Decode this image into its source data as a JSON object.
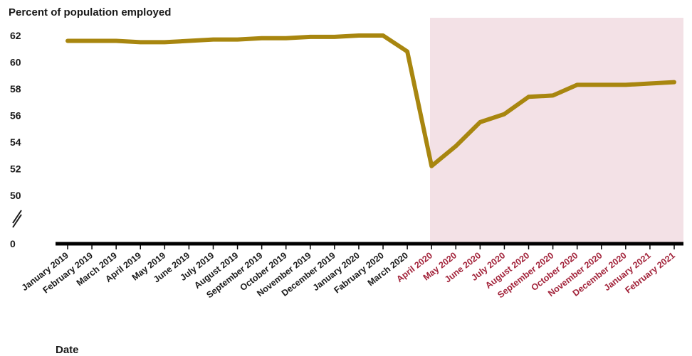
{
  "chart_data": {
    "type": "line",
    "ylabel": "Percent of population employed",
    "xlabel": "Date",
    "y_ticks": [
      "62",
      "60",
      "58",
      "56",
      "54",
      "52",
      "50",
      "0"
    ],
    "y_axis_break": true,
    "ylim": [
      50,
      62
    ],
    "categories": [
      "January 2019",
      "February 2019",
      "March 2019",
      "April 2019",
      "May 2019",
      "June 2019",
      "July 2019",
      "August 2019",
      "September  2019",
      "October 2019",
      "November 2019",
      "December 2019",
      "January 2020",
      "Fabruary 2020",
      "March 2020",
      "April  2020",
      "May 2020",
      "June 2020",
      "July 2020",
      "August 2020",
      "September 2020",
      "October 2020",
      "November 2020",
      "December 2020",
      "January 2021",
      "February 2021"
    ],
    "series": [
      {
        "values": [
          61.6,
          61.6,
          61.6,
          61.5,
          61.5,
          61.6,
          61.7,
          61.7,
          61.8,
          61.8,
          61.9,
          61.9,
          62.0,
          62.0,
          60.8,
          52.2,
          53.7,
          55.5,
          56.1,
          57.4,
          57.5,
          58.3,
          58.3,
          58.3,
          58.4,
          58.5
        ],
        "color": "#a8860f"
      }
    ],
    "highlight": {
      "from_category": "April  2020",
      "to_category": "February 2021",
      "color": "#f3e1e6",
      "label_color": "#a2233a"
    },
    "grid": false,
    "legend": "none"
  }
}
